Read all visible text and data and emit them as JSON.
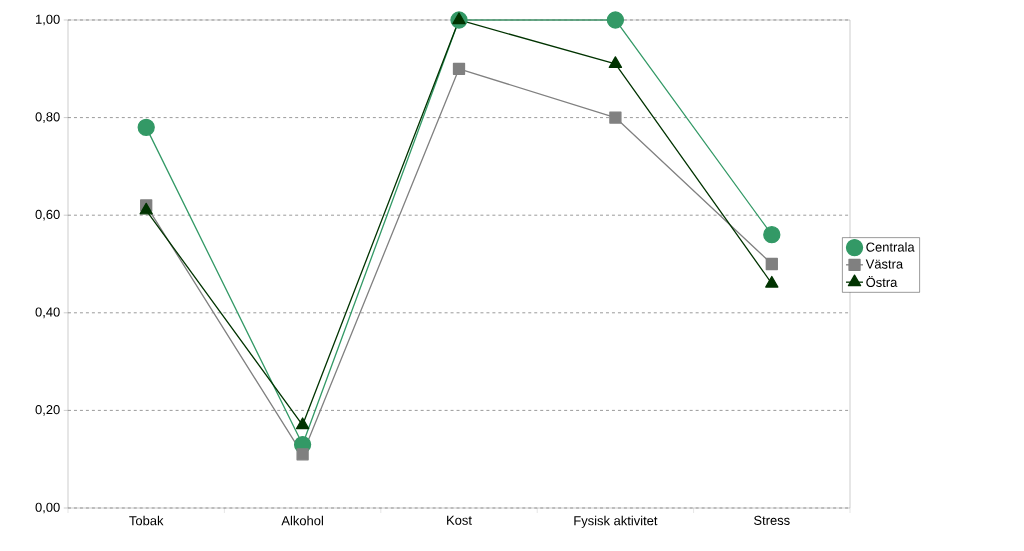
{
  "chart_data": {
    "type": "line",
    "categories": [
      "Tobak",
      "Alkohol",
      "Kost",
      "Fysisk aktivitet",
      "Stress"
    ],
    "series": [
      {
        "name": "Centrala",
        "color": "#339966",
        "marker": "circle",
        "values": [
          0.78,
          0.13,
          1.0,
          1.0,
          0.56
        ]
      },
      {
        "name": "Västra",
        "color": "#808080",
        "marker": "square",
        "values": [
          0.62,
          0.11,
          0.9,
          0.8,
          0.5
        ]
      },
      {
        "name": "Östra",
        "color": "#003300",
        "marker": "triangle",
        "values": [
          0.61,
          0.17,
          1.0,
          0.91,
          0.46
        ]
      }
    ],
    "ylim": [
      0,
      1
    ],
    "yticks": [
      {
        "value": 0,
        "label": "0,00"
      },
      {
        "value": 0.2,
        "label": "0,20"
      },
      {
        "value": 0.4,
        "label": "0,40"
      },
      {
        "value": 0.6,
        "label": "0,60"
      },
      {
        "value": 0.8,
        "label": "0,80"
      },
      {
        "value": 1.0,
        "label": "1,00"
      }
    ],
    "grid": "y",
    "legend": "right",
    "line_style": "solid"
  }
}
